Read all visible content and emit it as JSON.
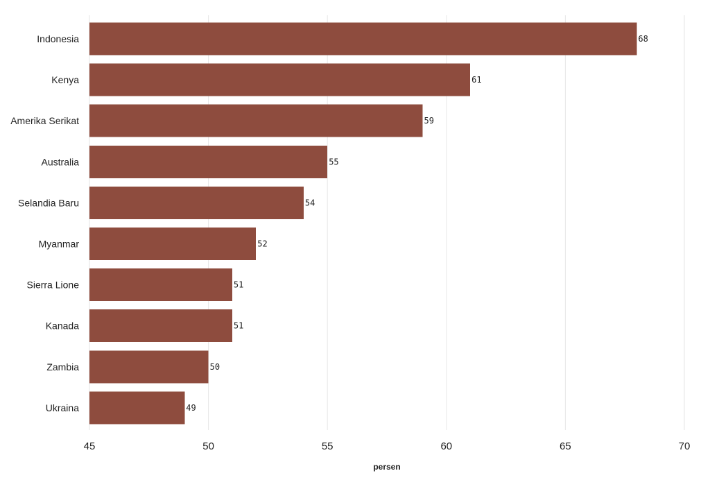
{
  "chart_data": {
    "type": "bar",
    "orientation": "horizontal",
    "categories": [
      "Indonesia",
      "Kenya",
      "Amerika Serikat",
      "Australia",
      "Selandia Baru",
      "Myanmar",
      "Sierra Lione",
      "Kanada",
      "Zambia",
      "Ukraina"
    ],
    "values": [
      68,
      61,
      59,
      55,
      54,
      52,
      51,
      51,
      50,
      49
    ],
    "value_labels": [
      "68",
      "61",
      "59",
      "55",
      "54",
      "52",
      "51",
      "51",
      "50",
      "49"
    ],
    "title": "",
    "xlabel": "persen",
    "ylabel": "",
    "xlim": [
      45,
      70
    ],
    "xticks": [
      45,
      50,
      55,
      60,
      65,
      70
    ],
    "xtick_labels": [
      "45",
      "50",
      "55",
      "60",
      "65",
      "70"
    ],
    "grid": "vertical",
    "legend": "none",
    "bar_color": "#8e4c3e"
  }
}
